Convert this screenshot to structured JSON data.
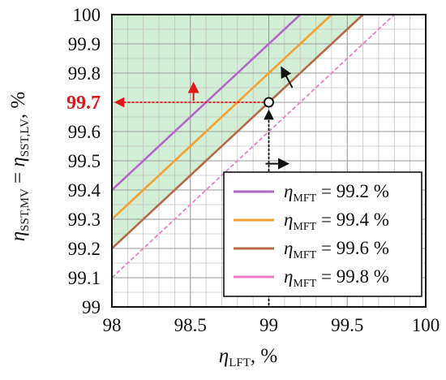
{
  "chart_data": {
    "type": "line",
    "xlabel": {
      "symbol": "η",
      "sub": "LFT",
      "unit": ", %"
    },
    "ylabel": {
      "symbol": "η",
      "sub1": "SST,MV",
      "eq": " = ",
      "sub2": "SST,LV",
      "unit": ", %"
    },
    "xlim": [
      98,
      100
    ],
    "ylim": [
      99,
      100
    ],
    "x_ticks": [
      98,
      98.5,
      99,
      99.5,
      100
    ],
    "x_tick_labels": [
      "98",
      "98.5",
      "99",
      "99.5",
      "100"
    ],
    "y_ticks": [
      99,
      99.1,
      99.2,
      99.3,
      99.4,
      99.5,
      99.6,
      99.7,
      99.8,
      99.9,
      100
    ],
    "y_tick_labels": [
      "99",
      "99.1",
      "99.2",
      "99.3",
      "99.4",
      "99.5",
      "99.6",
      "99.7",
      "99.8",
      "99.9",
      "100"
    ],
    "grid": true,
    "legend_position": "bottom-right",
    "series": [
      {
        "name_symbol": "η",
        "name_sub": "MFT",
        "name_value": " = 99.2 %",
        "color": "#b565c9",
        "mft": 99.2,
        "x": [
          98,
          99.2
        ],
        "y": [
          99.4,
          100
        ]
      },
      {
        "name_symbol": "η",
        "name_sub": "MFT",
        "name_value": " = 99.4 %",
        "color": "#f5a030",
        "mft": 99.4,
        "x": [
          98,
          99.4
        ],
        "y": [
          99.3,
          100
        ]
      },
      {
        "name_symbol": "η",
        "name_sub": "MFT",
        "name_value": " = 99.6 %",
        "color": "#b56a45",
        "mft": 99.6,
        "x": [
          98,
          99.6
        ],
        "y": [
          99.2,
          100
        ]
      },
      {
        "name_symbol": "η",
        "name_sub": "MFT",
        "name_value": " = 99.8 %",
        "color": "#f27ac4",
        "mft": 99.8,
        "x": [
          98,
          99.8
        ],
        "y": [
          99.1,
          100
        ]
      }
    ],
    "feasible_region": {
      "color": "#cdeccf",
      "boundary_series": "η_MFT = 99.6 %"
    },
    "highlight": {
      "x": 99,
      "y": 99.7,
      "label": "99.7",
      "label_color": "#e01818"
    }
  }
}
